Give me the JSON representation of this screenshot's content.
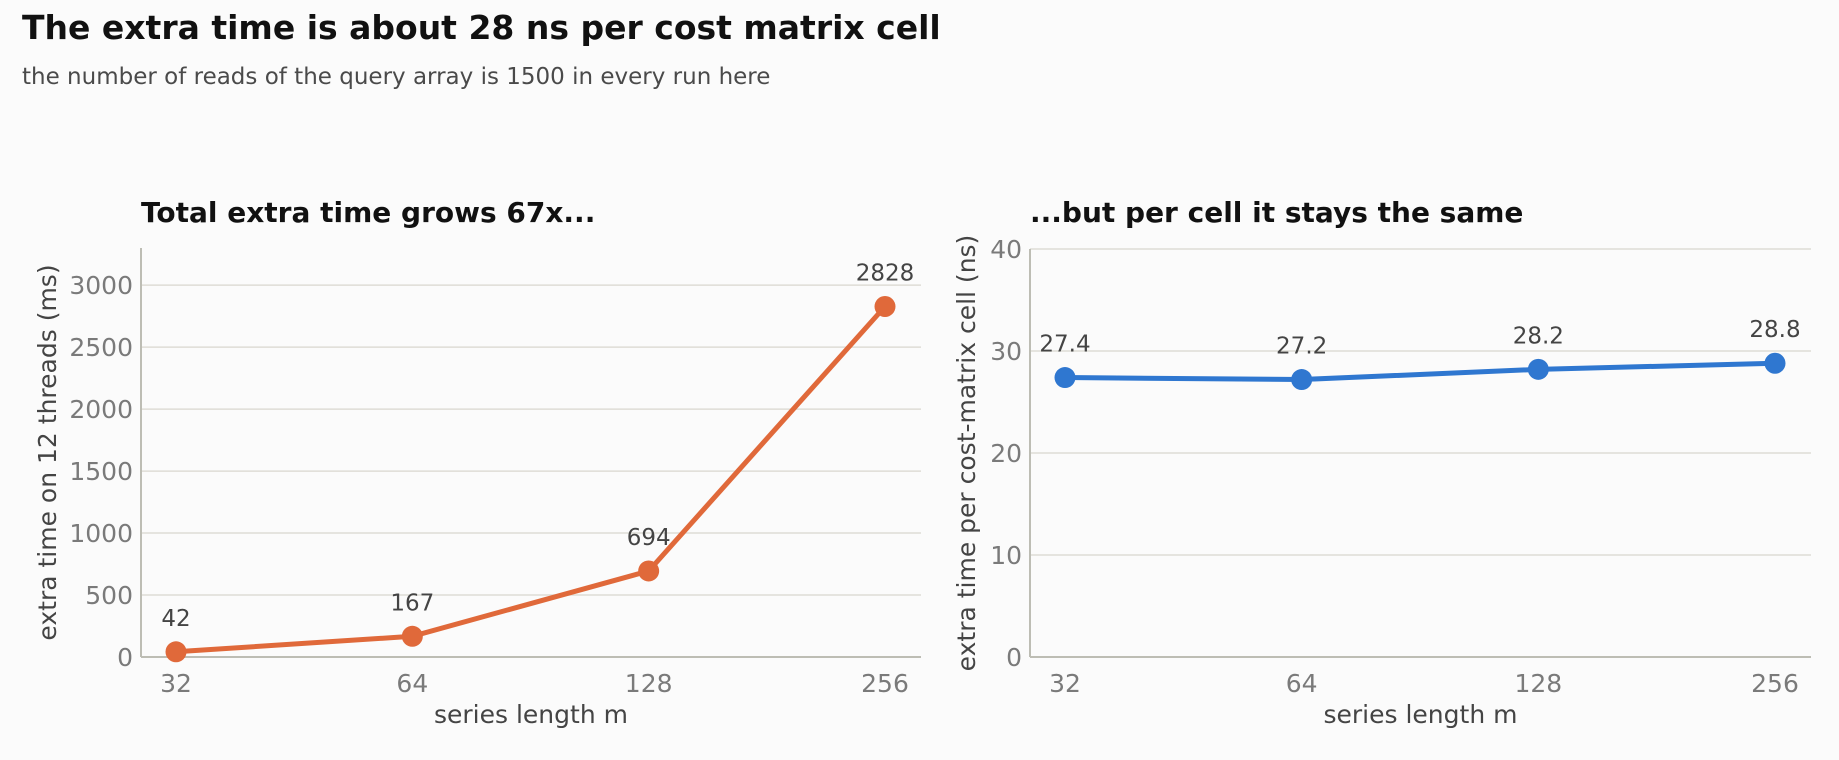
{
  "title": "The extra time is about 28 ns per cost matrix cell",
  "subtitle": "the number of reads of the query array is 1500 in every run here",
  "chart_data": [
    {
      "type": "line",
      "title": "Total extra time grows 67x...",
      "xlabel": "series length m",
      "ylabel": "extra time on 12 threads (ms)",
      "categories": [
        "32",
        "64",
        "128",
        "256"
      ],
      "values": [
        42,
        167,
        694,
        2828
      ],
      "value_labels": [
        "42",
        "167",
        "694",
        "2828"
      ],
      "yticks": [
        0,
        500,
        1000,
        1500,
        2000,
        2500,
        3000
      ],
      "ylim": [
        0,
        3300
      ],
      "grid": true,
      "color": "#e0693a"
    },
    {
      "type": "line",
      "title": "...but per cell it stays the same",
      "xlabel": "series length m",
      "ylabel": "extra time per cost-matrix cell (ns)",
      "categories": [
        "32",
        "64",
        "128",
        "256"
      ],
      "values": [
        27.4,
        27.2,
        28.2,
        28.8
      ],
      "value_labels": [
        "27.4",
        "27.2",
        "28.2",
        "28.8"
      ],
      "yticks": [
        0,
        10,
        20,
        30,
        40
      ],
      "ylim": [
        0,
        40
      ],
      "grid": true,
      "color": "#2f77d0"
    }
  ]
}
